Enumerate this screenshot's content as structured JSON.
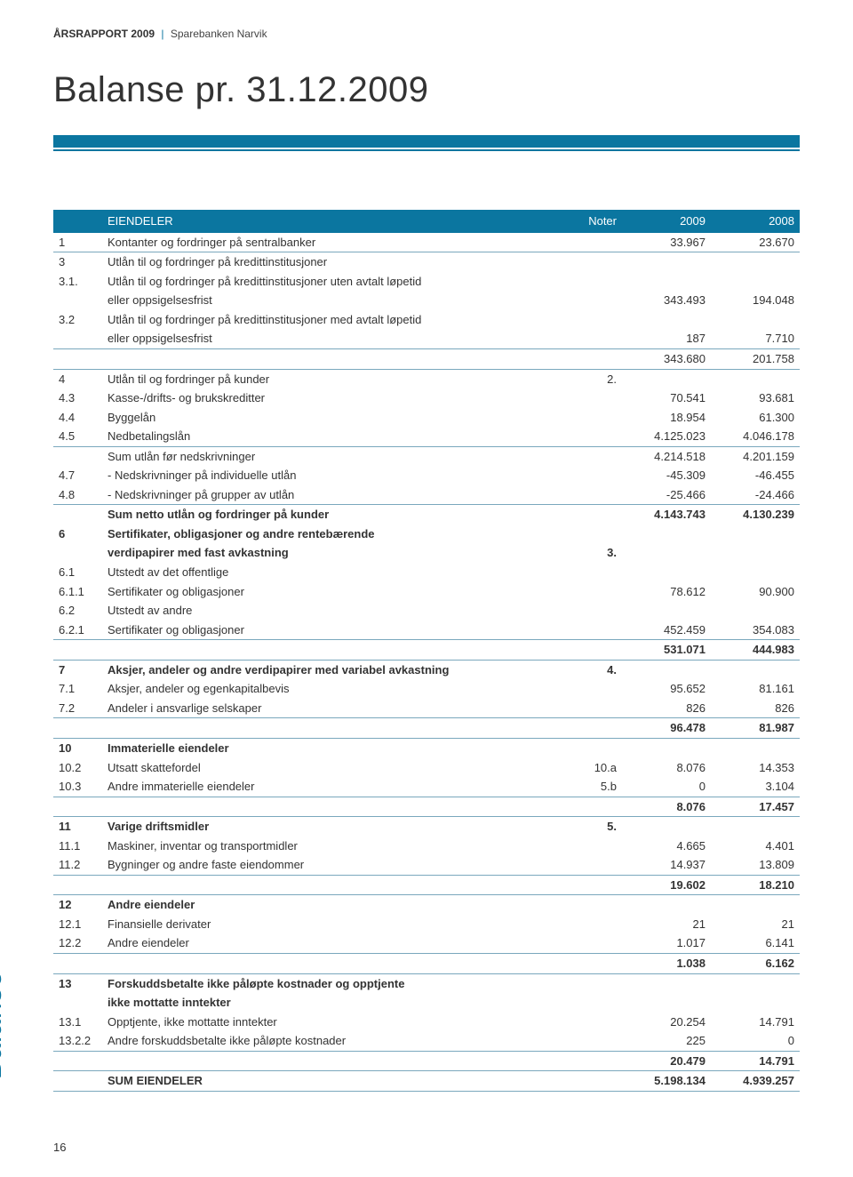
{
  "header": {
    "report": "ÅRSRAPPORT 2009",
    "sep": "|",
    "bank": "Sparebanken Narvik"
  },
  "title": "Balanse pr. 31.12.2009",
  "side_label": "Balanse",
  "page_number": "16",
  "colors": {
    "brand": "#0b76a0",
    "line": "#7aa8bd",
    "text": "#333333",
    "bg": "#ffffff"
  },
  "columns": [
    "",
    "EIENDELER",
    "Noter",
    "2009",
    "2008"
  ],
  "rows": [
    {
      "idx": "1",
      "desc": "Kontanter og fordringer på sentralbanker",
      "note": "",
      "y1": "33.967",
      "y2": "23.670",
      "underline": true
    },
    {
      "idx": "3",
      "desc": "Utlån til og fordringer på kredittinstitusjoner",
      "note": "",
      "y1": "",
      "y2": ""
    },
    {
      "idx": "3.1.",
      "desc": "Utlån til og fordringer på kredittinstitusjoner uten avtalt løpetid",
      "note": "",
      "y1": "",
      "y2": ""
    },
    {
      "idx": "",
      "desc": "eller oppsigelsesfrist",
      "note": "",
      "y1": "343.493",
      "y2": "194.048"
    },
    {
      "idx": "3.2",
      "desc": "Utlån til og fordringer på kredittinstitusjoner med avtalt løpetid",
      "note": "",
      "y1": "",
      "y2": ""
    },
    {
      "idx": "",
      "desc": "eller oppsigelsesfrist",
      "note": "",
      "y1": "187",
      "y2": "7.710",
      "underline": true
    },
    {
      "idx": "",
      "desc": "",
      "note": "",
      "y1": "343.680",
      "y2": "201.758",
      "underline": true
    },
    {
      "idx": "4",
      "desc": "Utlån til og fordringer på kunder",
      "note": "2.",
      "y1": "",
      "y2": ""
    },
    {
      "idx": "4.3",
      "desc": "Kasse-/drifts- og brukskreditter",
      "note": "",
      "y1": "70.541",
      "y2": "93.681"
    },
    {
      "idx": "4.4",
      "desc": "Byggelån",
      "note": "",
      "y1": "18.954",
      "y2": "61.300"
    },
    {
      "idx": "4.5",
      "desc": "Nedbetalingslån",
      "note": "",
      "y1": "4.125.023",
      "y2": "4.046.178",
      "underline": true
    },
    {
      "idx": "",
      "desc": "Sum utlån før nedskrivninger",
      "note": "",
      "y1": "4.214.518",
      "y2": "4.201.159"
    },
    {
      "idx": "4.7",
      "desc": "- Nedskrivninger på individuelle utlån",
      "note": "",
      "y1": "-45.309",
      "y2": "-46.455"
    },
    {
      "idx": "4.8",
      "desc": "- Nedskrivninger på grupper av utlån",
      "note": "",
      "y1": "-25.466",
      "y2": "-24.466",
      "underline": true
    },
    {
      "idx": "",
      "desc": "Sum netto utlån og fordringer på kunder",
      "note": "",
      "y1": "4.143.743",
      "y2": "4.130.239",
      "bold": true
    },
    {
      "idx": "6",
      "desc": "Sertifikater, obligasjoner og andre rentebærende",
      "note": "",
      "y1": "",
      "y2": "",
      "bold": true
    },
    {
      "idx": "",
      "desc": "verdipapirer med fast avkastning",
      "note": "3.",
      "y1": "",
      "y2": "",
      "bold": true
    },
    {
      "idx": "6.1",
      "desc": "Utstedt av det offentlige",
      "note": "",
      "y1": "",
      "y2": ""
    },
    {
      "idx": "6.1.1",
      "desc": "Sertifikater og obligasjoner",
      "note": "",
      "y1": "78.612",
      "y2": "90.900"
    },
    {
      "idx": "6.2",
      "desc": "Utstedt av andre",
      "note": "",
      "y1": "",
      "y2": ""
    },
    {
      "idx": "6.2.1",
      "desc": "Sertifikater og obligasjoner",
      "note": "",
      "y1": "452.459",
      "y2": "354.083",
      "underline": true
    },
    {
      "idx": "",
      "desc": "",
      "note": "",
      "y1": "531.071",
      "y2": "444.983",
      "bold": true,
      "underline": true
    },
    {
      "idx": "7",
      "desc": "Aksjer, andeler og andre verdipapirer med variabel avkastning",
      "note": "4.",
      "y1": "",
      "y2": "",
      "bold": true
    },
    {
      "idx": "7.1",
      "desc": "Aksjer, andeler og egenkapitalbevis",
      "note": "",
      "y1": "95.652",
      "y2": "81.161"
    },
    {
      "idx": "7.2",
      "desc": "Andeler i ansvarlige selskaper",
      "note": "",
      "y1": "826",
      "y2": "826",
      "underline": true
    },
    {
      "idx": "",
      "desc": "",
      "note": "",
      "y1": "96.478",
      "y2": "81.987",
      "bold": true,
      "underline": true
    },
    {
      "idx": "10",
      "desc": "Immaterielle eiendeler",
      "note": "",
      "y1": "",
      "y2": "",
      "bold": true
    },
    {
      "idx": "10.2",
      "desc": "Utsatt skattefordel",
      "note": "10.a",
      "y1": "8.076",
      "y2": "14.353"
    },
    {
      "idx": "10.3",
      "desc": "Andre immaterielle eiendeler",
      "note": "5.b",
      "y1": "0",
      "y2": "3.104",
      "underline": true
    },
    {
      "idx": "",
      "desc": "",
      "note": "",
      "y1": "8.076",
      "y2": "17.457",
      "bold": true,
      "underline": true
    },
    {
      "idx": "11",
      "desc": "Varige driftsmidler",
      "note": "5.",
      "y1": "",
      "y2": "",
      "bold": true
    },
    {
      "idx": "11.1",
      "desc": "Maskiner, inventar og transportmidler",
      "note": "",
      "y1": "4.665",
      "y2": "4.401"
    },
    {
      "idx": "11.2",
      "desc": "Bygninger og andre faste eiendommer",
      "note": "",
      "y1": "14.937",
      "y2": "13.809",
      "underline": true
    },
    {
      "idx": "",
      "desc": "",
      "note": "",
      "y1": "19.602",
      "y2": "18.210",
      "bold": true,
      "underline": true
    },
    {
      "idx": "12",
      "desc": "Andre eiendeler",
      "note": "",
      "y1": "",
      "y2": "",
      "bold": true
    },
    {
      "idx": "12.1",
      "desc": "Finansielle derivater",
      "note": "",
      "y1": "21",
      "y2": "21"
    },
    {
      "idx": "12.2",
      "desc": "Andre eiendeler",
      "note": "",
      "y1": "1.017",
      "y2": "6.141",
      "underline": true
    },
    {
      "idx": "",
      "desc": "",
      "note": "",
      "y1": "1.038",
      "y2": "6.162",
      "bold": true,
      "underline": true
    },
    {
      "idx": "13",
      "desc": "Forskuddsbetalte ikke påløpte kostnader og opptjente",
      "note": "",
      "y1": "",
      "y2": "",
      "bold": true
    },
    {
      "idx": "",
      "desc": "ikke mottatte inntekter",
      "note": "",
      "y1": "",
      "y2": "",
      "bold": true
    },
    {
      "idx": "13.1",
      "desc": "Opptjente, ikke mottatte inntekter",
      "note": "",
      "y1": "20.254",
      "y2": "14.791"
    },
    {
      "idx": "13.2.2",
      "desc": "Andre forskuddsbetalte ikke påløpte kostnader",
      "note": "",
      "y1": "225",
      "y2": "0",
      "underline": true
    },
    {
      "idx": "",
      "desc": "",
      "note": "",
      "y1": "20.479",
      "y2": "14.791",
      "bold": true,
      "underline": true
    },
    {
      "idx": "",
      "desc": "SUM EIENDELER",
      "note": "",
      "y1": "5.198.134",
      "y2": "4.939.257",
      "bold": true,
      "underline": true
    }
  ]
}
